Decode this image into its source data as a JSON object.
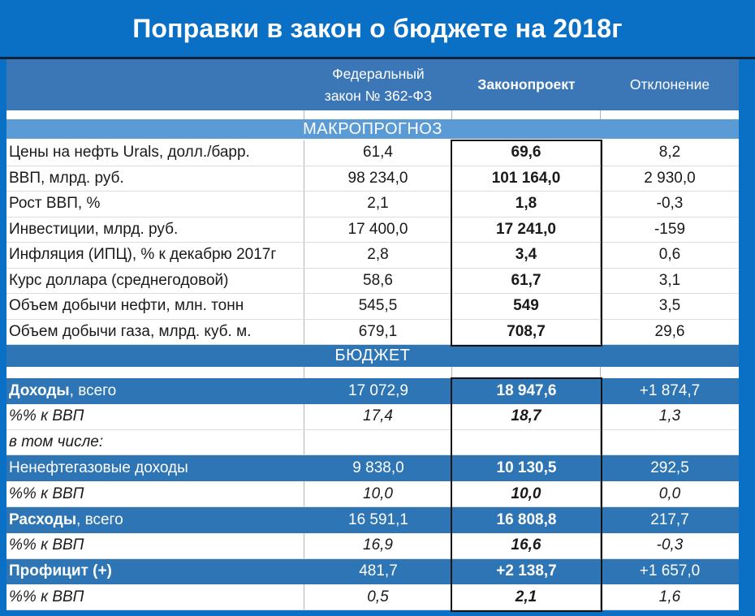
{
  "title": "Поправки в закон о бюджете на 2018г",
  "colors": {
    "accent_blue": "#0A70C6",
    "header_bg": "#3B76B6",
    "macro_band_bg": "#5B9BD5",
    "budget_band_bg": "#2E75B6",
    "blue_row_bg": "#2E75B6",
    "dark_line": "#10243A"
  },
  "header": {
    "law_line1": "Федеральный",
    "law_line2": "закон № 362-ФЗ",
    "bill": "Законопроект",
    "deviation": "Отклонение"
  },
  "sections": {
    "macro": "МАКРОПРОГНОЗ",
    "budget": "БЮДЖЕТ"
  },
  "macro_rows": [
    {
      "label": "Цены на нефть Urals, долл./барр.",
      "law": "61,4",
      "bill": "69,6",
      "dev": "8,2"
    },
    {
      "label": "ВВП, млрд. руб.",
      "law": "98 234,0",
      "bill": "101 164,0",
      "dev": "2 930,0"
    },
    {
      "label": "Рост ВВП, %",
      "law": "2,1",
      "bill": "1,8",
      "dev": "-0,3"
    },
    {
      "label": "Инвестиции, млрд. руб.",
      "law": "17 400,0",
      "bill": "17 241,0",
      "dev": "-159"
    },
    {
      "label": "Инфляция (ИПЦ), % к декабрю 2017г",
      "law": "2,8",
      "bill": "3,4",
      "dev": "0,6"
    },
    {
      "label": "Курс доллара (среднегодовой)",
      "law": "58,6",
      "bill": "61,7",
      "dev": "3,1"
    },
    {
      "label": "Объем добычи нефти, млн. тонн",
      "law": "545,5",
      "bill": "549",
      "dev": "3,5"
    },
    {
      "label": "Объем добычи газа, млрд. куб. м.",
      "law": "679,1",
      "bill": "708,7",
      "dev": "29,6"
    }
  ],
  "budget_rows": [
    {
      "label_bold": "Доходы",
      "label_rest": ", всего",
      "law": "17 072,9",
      "bill": "18 947,6",
      "dev": "+1 874,7"
    },
    {
      "label": "%% к ВВП",
      "law": "17,4",
      "bill": "18,7",
      "dev": "1,3"
    },
    {
      "label": "в том числе:",
      "law": "",
      "bill": "",
      "dev": ""
    },
    {
      "label_bold": "",
      "label_rest": "Ненефтегазовые доходы",
      "law": "9 838,0",
      "bill": "10 130,5",
      "dev": "292,5"
    },
    {
      "label": "%% к ВВП",
      "law": "10,0",
      "bill": "10,0",
      "dev": "0,0"
    },
    {
      "label_bold": "Расходы",
      "label_rest": ", всего",
      "law": "16 591,1",
      "bill": "16 808,8",
      "dev": "217,7"
    },
    {
      "label": "%% к ВВП",
      "law": "16,9",
      "bill": "16,6",
      "dev": "-0,3"
    },
    {
      "label_bold": "Профицит (+)",
      "label_rest": "",
      "law": "481,7",
      "bill": "+2 138,7",
      "dev": "+1 657,0"
    },
    {
      "label": "%% к ВВП",
      "law": "0,5",
      "bill": "2,1",
      "dev": "1,6"
    }
  ]
}
